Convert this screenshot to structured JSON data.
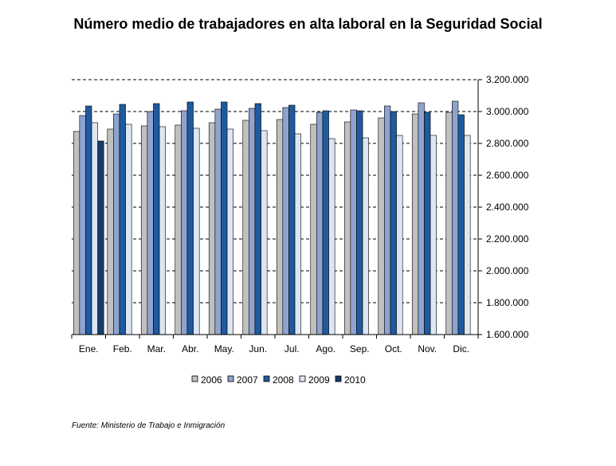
{
  "title": "Número medio de trabajadores en alta laboral en la Seguridad Social",
  "source": "Fuente: Ministerio de Trabajo e Inmigración",
  "chart_data": {
    "type": "bar",
    "title": "Número medio de trabajadores en alta laboral en la Seguridad Social",
    "xlabel": "",
    "ylabel": "",
    "ylim": [
      1600000,
      3200000
    ],
    "y_ticks": [
      1600000,
      1800000,
      2000000,
      2200000,
      2400000,
      2600000,
      2800000,
      3000000,
      3200000
    ],
    "y_tick_labels": [
      "1.600.000",
      "1.800.000",
      "2.000.000",
      "2.200.000",
      "2.400.000",
      "2.600.000",
      "2.800.000",
      "3.000.000",
      "3.200.000"
    ],
    "y_axis_position": "right",
    "grid": "dashed horizontal",
    "legend_position": "bottom",
    "categories": [
      "Ene.",
      "Feb.",
      "Mar.",
      "Abr.",
      "May.",
      "Jun.",
      "Jul.",
      "Ago.",
      "Sep.",
      "Oct.",
      "Nov.",
      "Dic."
    ],
    "series": [
      {
        "name": "2006",
        "color": "#c0c0c0",
        "values": [
          2875000,
          2890000,
          2910000,
          2915000,
          2930000,
          2945000,
          2950000,
          2920000,
          2935000,
          2960000,
          2985000,
          2995000
        ]
      },
      {
        "name": "2007",
        "color": "#8ea3cf",
        "values": [
          2975000,
          2985000,
          3000000,
          3005000,
          3015000,
          3020000,
          3025000,
          2995000,
          3010000,
          3035000,
          3055000,
          3065000
        ]
      },
      {
        "name": "2008",
        "color": "#1f5a9e",
        "values": [
          3035000,
          3045000,
          3050000,
          3060000,
          3060000,
          3050000,
          3040000,
          3005000,
          3005000,
          3000000,
          2995000,
          2980000
        ]
      },
      {
        "name": "2009",
        "color": "#dde6f2",
        "values": [
          2930000,
          2920000,
          2905000,
          2895000,
          2890000,
          2880000,
          2860000,
          2830000,
          2835000,
          2850000,
          2850000,
          2850000
        ]
      },
      {
        "name": "2010",
        "color": "#153d6b",
        "values": [
          2815000,
          null,
          null,
          null,
          null,
          null,
          null,
          null,
          null,
          null,
          null,
          null
        ]
      }
    ]
  }
}
